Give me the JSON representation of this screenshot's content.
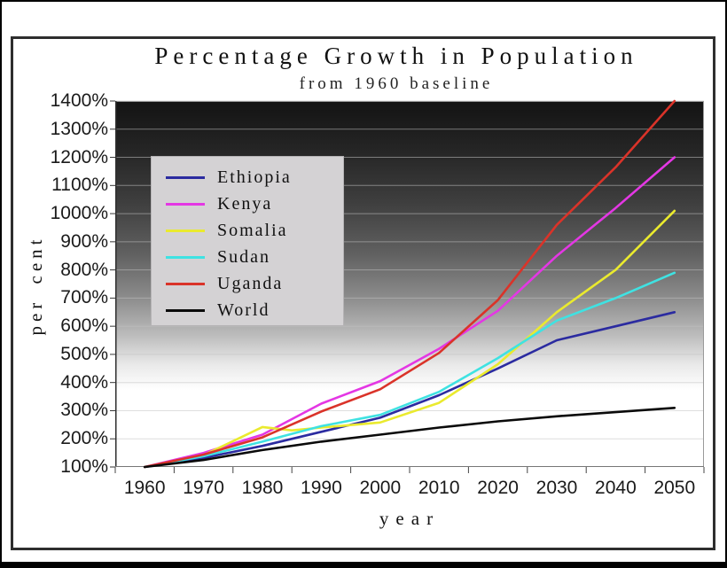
{
  "chart": {
    "y_ticks": [
      "1400%",
      "1300%",
      "1200%",
      "1100%",
      "1000%",
      "900%",
      "800%",
      "700%",
      "600%",
      "500%",
      "400%",
      "300%",
      "200%",
      "100%"
    ],
    "x_ticks": [
      "1960",
      "1970",
      "1980",
      "1990",
      "2000",
      "2010",
      "2020",
      "2030",
      "2040",
      "2050"
    ]
  },
  "chart_data": {
    "type": "line",
    "title": "Percentage Growth in Population",
    "subtitle": "from 1960 baseline",
    "xlabel": "year",
    "ylabel": "per cent",
    "x_range": [
      1960,
      2050
    ],
    "x_tick_step": 10,
    "ylim": [
      100,
      1400
    ],
    "y_tick_step": 100,
    "y_tick_format": "percent",
    "grid": true,
    "legend_position": "upper-left-inside",
    "plot_background": "vertical gradient, black at top to white at bottom",
    "series": [
      {
        "name": "Ethiopia",
        "color": "#2b2ba0",
        "x": [
          1960,
          1970,
          1980,
          1990,
          2000,
          2010,
          2020,
          2030,
          2040,
          2050
        ],
        "values": [
          100,
          132,
          175,
          225,
          275,
          355,
          450,
          550,
          600,
          650
        ]
      },
      {
        "name": "Kenya",
        "color": "#e437e4",
        "x": [
          1960,
          1970,
          1980,
          1990,
          2000,
          2010,
          2020,
          2030,
          2040,
          2050
        ],
        "values": [
          100,
          150,
          215,
          325,
          405,
          520,
          655,
          850,
          1020,
          1200
        ]
      },
      {
        "name": "Somalia",
        "color": "#eaea2e",
        "x": [
          1960,
          1970,
          1980,
          1985,
          1990,
          2000,
          2010,
          2020,
          2030,
          2040,
          2050
        ],
        "values": [
          100,
          142,
          242,
          230,
          240,
          258,
          328,
          465,
          650,
          800,
          1010
        ]
      },
      {
        "name": "Sudan",
        "color": "#3fe2e2",
        "x": [
          1960,
          1970,
          1980,
          1990,
          2000,
          2010,
          2020,
          2030,
          2040,
          2050
        ],
        "values": [
          100,
          138,
          190,
          245,
          285,
          367,
          487,
          620,
          700,
          790
        ]
      },
      {
        "name": "Uganda",
        "color": "#da3329",
        "x": [
          1960,
          1970,
          1980,
          1990,
          2000,
          2010,
          2020,
          2030,
          2040,
          2050
        ],
        "values": [
          100,
          144,
          205,
          297,
          376,
          505,
          693,
          960,
          1165,
          1400
        ]
      },
      {
        "name": "World",
        "color": "#0a0a0a",
        "x": [
          1960,
          1970,
          1980,
          1990,
          2000,
          2010,
          2020,
          2030,
          2040,
          2050
        ],
        "values": [
          100,
          125,
          160,
          190,
          215,
          240,
          262,
          280,
          295,
          310
        ]
      }
    ]
  }
}
